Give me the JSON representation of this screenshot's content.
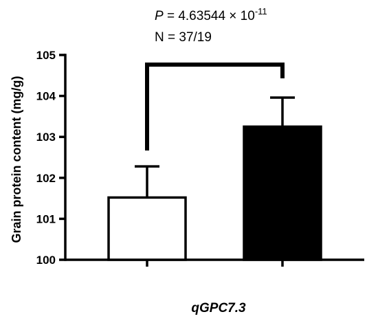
{
  "chart_data": {
    "type": "bar",
    "categories": [
      "",
      ""
    ],
    "values": [
      101.52,
      103.25
    ],
    "error_upper": [
      102.28,
      103.96
    ],
    "bar_colors": [
      "#ffffff",
      "#000000"
    ],
    "ylabel": "Grain protein content (mg/g)",
    "xlabel": "qGPC7.3",
    "ylim": [
      100,
      105
    ],
    "yticks": [
      "100",
      "101",
      "102",
      "103",
      "104",
      "105"
    ],
    "annotation": {
      "p_label": "P",
      "p_equals": " = 4.63544 × 10",
      "p_exponent": "-11",
      "n_text": "N = 37/19"
    }
  }
}
